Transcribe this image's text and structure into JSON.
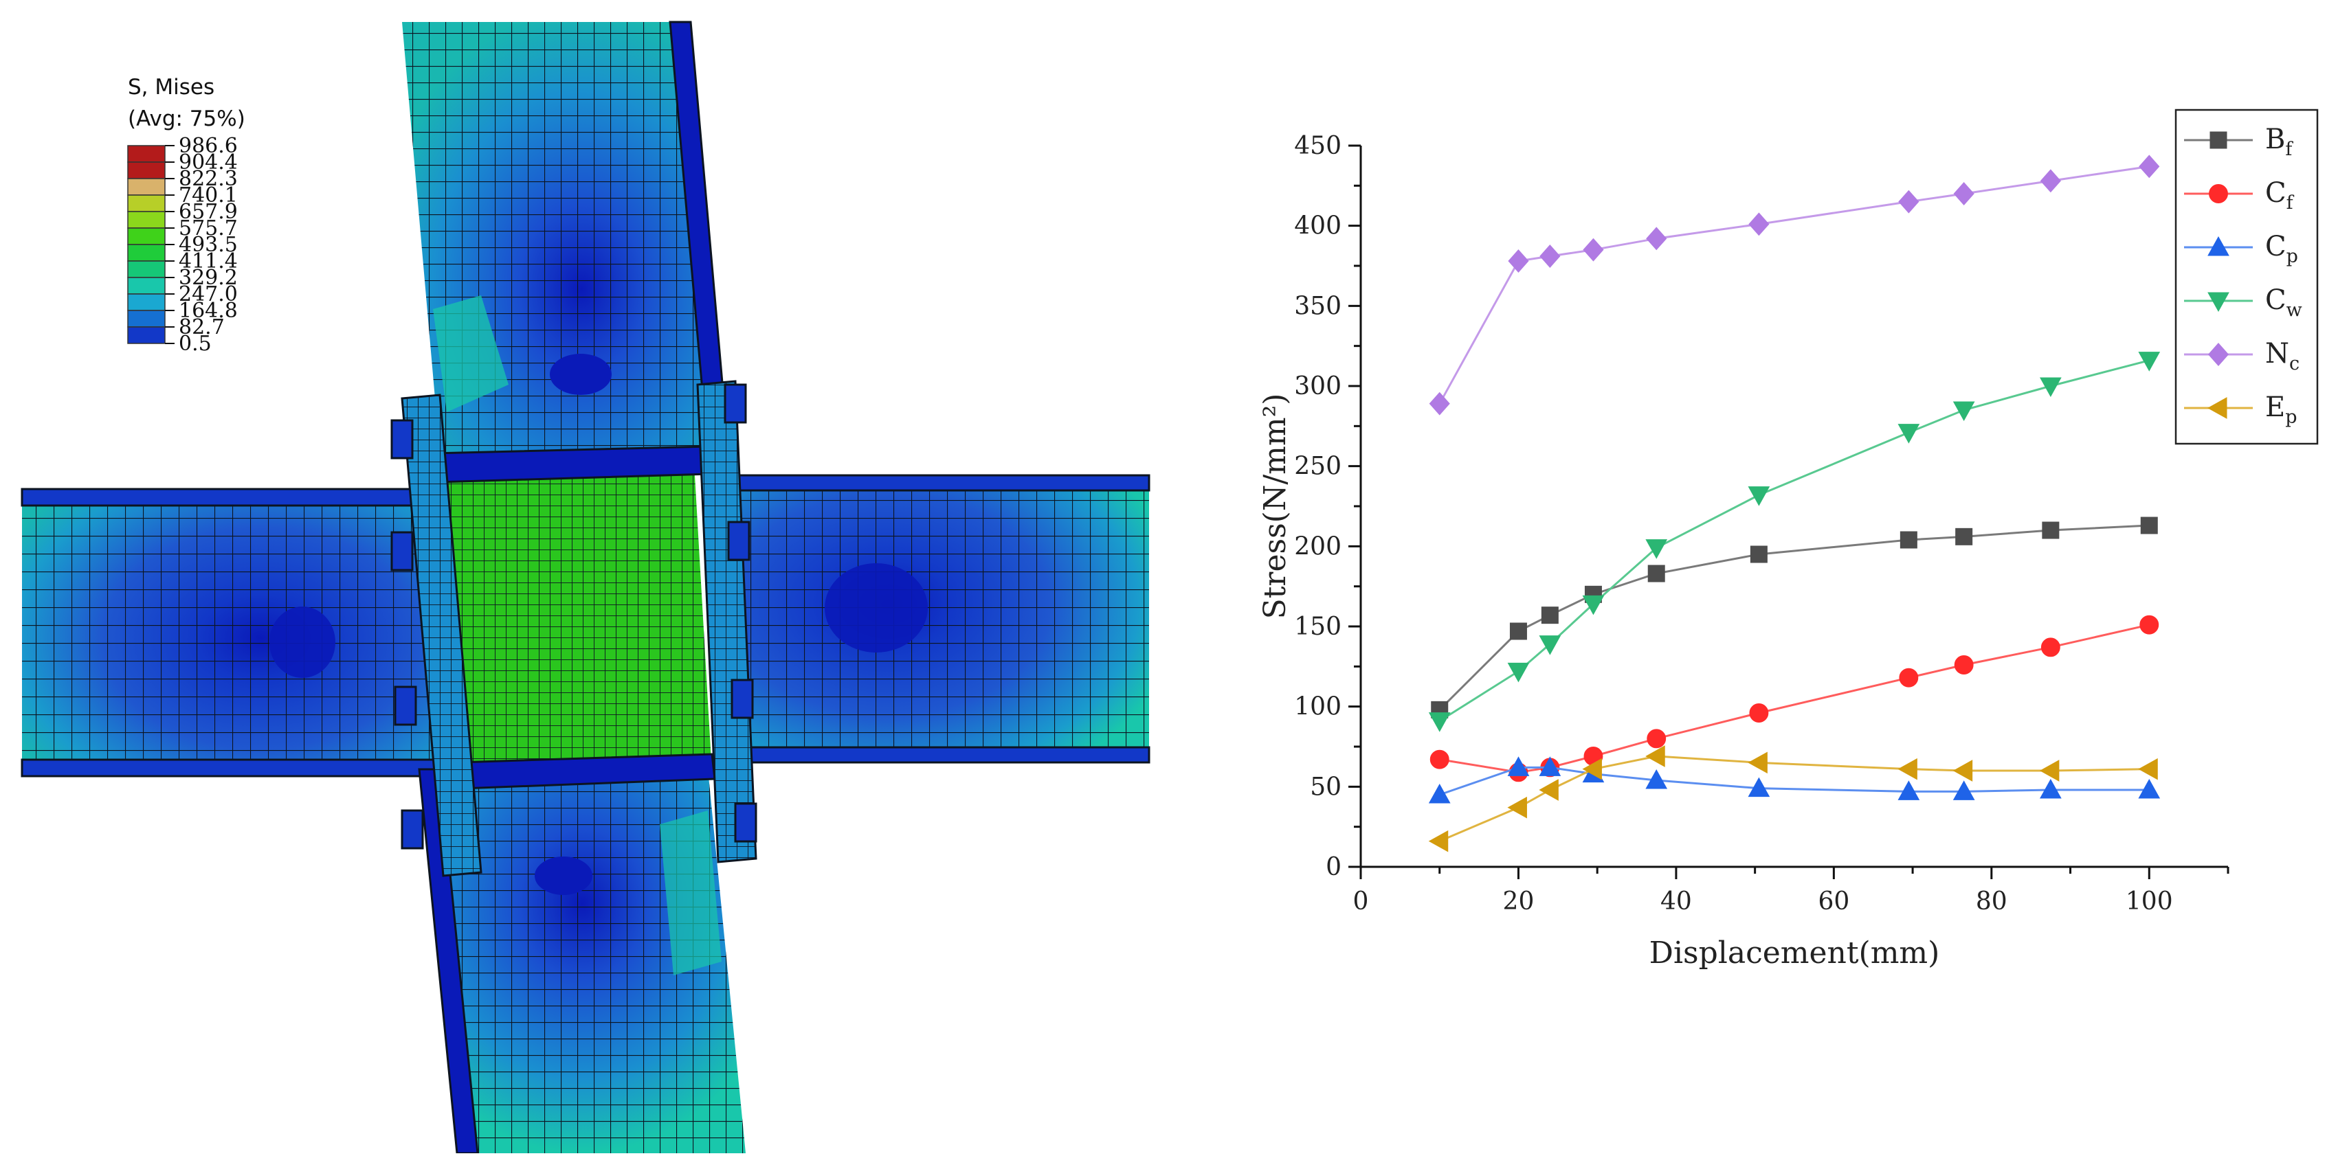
{
  "fe_contour": {
    "legend_title": "S, Mises",
    "legend_subtitle": "(Avg: 75%)",
    "legend_entries": [
      {
        "value": "986.6",
        "color": "#b31b1b"
      },
      {
        "value": "904.4",
        "color": "#b31b1b"
      },
      {
        "value": "822.3",
        "color": "#d9b26b"
      },
      {
        "value": "740.1",
        "color": "#b7cf28"
      },
      {
        "value": "657.9",
        "color": "#8bd71c"
      },
      {
        "value": "575.7",
        "color": "#3fd21a"
      },
      {
        "value": "493.5",
        "color": "#1fcc3a"
      },
      {
        "value": "411.4",
        "color": "#16c777"
      },
      {
        "value": "329.2",
        "color": "#19c7ab"
      },
      {
        "value": "247.0",
        "color": "#1aa8d1"
      },
      {
        "value": "164.8",
        "color": "#1570d1"
      },
      {
        "value": "82.7",
        "color": "#1238c8"
      },
      {
        "value": "0.5",
        "color": "#0b12e0"
      }
    ],
    "colors": {
      "steel_low": "#1f4fc9",
      "steel_mid": "#1a9ccd",
      "panel_zone": "#2ac61e",
      "deep_blue": "#0a1ab8",
      "mesh": "#101820"
    }
  },
  "chart_data": {
    "type": "line",
    "title": "",
    "xlabel": "Displacement(mm)",
    "ylabel": "Stress(N/mm²)",
    "xlim": [
      0,
      110
    ],
    "ylim": [
      0,
      450
    ],
    "xticks": [
      "0",
      "20",
      "40",
      "60",
      "80",
      "100"
    ],
    "yticks": [
      "0",
      "50",
      "100",
      "150",
      "200",
      "250",
      "300",
      "350",
      "400",
      "450"
    ],
    "grid": false,
    "legend_position": "top-right",
    "series": [
      {
        "name": "B",
        "subscript": "f",
        "color": "#4d4d4d",
        "stroke": "#7a7a7a",
        "marker": "square",
        "x": [
          10,
          20,
          24,
          29.5,
          37.5,
          50.5,
          69.5,
          76.5,
          87.5,
          100
        ],
        "y": [
          98,
          147,
          157,
          170,
          183,
          195,
          204,
          206,
          210,
          213
        ]
      },
      {
        "name": "C",
        "subscript": "f",
        "color": "#ff2a2a",
        "stroke": "#ff5c5c",
        "marker": "circle",
        "x": [
          10,
          20,
          24,
          29.5,
          37.5,
          50.5,
          69.5,
          76.5,
          87.5,
          100
        ],
        "y": [
          67,
          59,
          62,
          69,
          80,
          96,
          118,
          126,
          137,
          151
        ]
      },
      {
        "name": "C",
        "subscript": "p",
        "color": "#1f63e8",
        "stroke": "#5b8ef0",
        "marker": "triangle-up",
        "x": [
          10,
          20,
          24,
          29.5,
          37.5,
          50.5,
          69.5,
          76.5,
          87.5,
          100
        ],
        "y": [
          45,
          62,
          62,
          58,
          54,
          49,
          47,
          47,
          48,
          48
        ]
      },
      {
        "name": "C",
        "subscript": "w",
        "color": "#2bb673",
        "stroke": "#58c990",
        "marker": "triangle-down",
        "x": [
          10,
          20,
          24,
          29.5,
          37.5,
          50.5,
          69.5,
          76.5,
          87.5,
          100
        ],
        "y": [
          91,
          122,
          139,
          164,
          199,
          232,
          271,
          285,
          300,
          316
        ]
      },
      {
        "name": "N",
        "subscript": "c",
        "color": "#b07ae3",
        "stroke": "#c49ae9",
        "marker": "diamond",
        "x": [
          10,
          20,
          24,
          29.5,
          37.5,
          50.5,
          69.5,
          76.5,
          87.5,
          100
        ],
        "y": [
          289,
          378,
          381,
          385,
          392,
          401,
          415,
          420,
          428,
          437
        ]
      },
      {
        "name": "E",
        "subscript": "p",
        "color": "#d39b0d",
        "stroke": "#e0b440",
        "marker": "triangle-left",
        "x": [
          10,
          20,
          24,
          29.5,
          37.5,
          50.5,
          69.5,
          76.5,
          87.5,
          100
        ],
        "y": [
          16,
          37,
          48,
          61,
          69,
          65,
          61,
          60,
          60,
          61
        ]
      }
    ]
  }
}
